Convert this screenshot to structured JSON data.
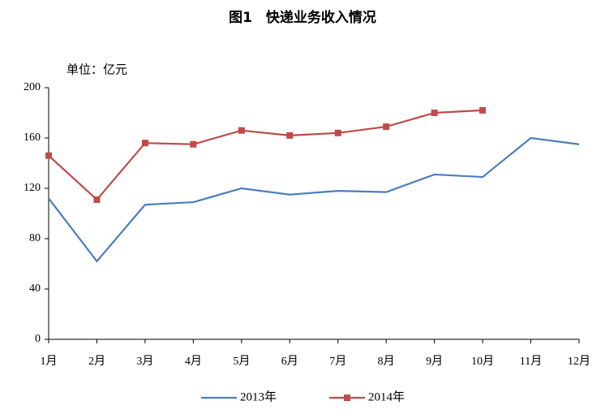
{
  "chart_data": {
    "type": "line",
    "title": "图1　快递业务收入情况",
    "y_unit": "单位：亿元",
    "categories": [
      "1月",
      "2月",
      "3月",
      "4月",
      "5月",
      "6月",
      "7月",
      "8月",
      "9月",
      "10月",
      "11月",
      "12月"
    ],
    "series": [
      {
        "name": "2013年",
        "color": "#4a7ebb",
        "marker": "none",
        "values": [
          112,
          62,
          107,
          109,
          120,
          115,
          118,
          117,
          131,
          129,
          160,
          155
        ]
      },
      {
        "name": "2014年",
        "color": "#be4b48",
        "marker": "square",
        "values": [
          146,
          111,
          156,
          155,
          166,
          162,
          164,
          169,
          180,
          182,
          null,
          null
        ]
      }
    ],
    "ylim": [
      0,
      200
    ],
    "yticks": [
      0,
      40,
      80,
      120,
      160,
      200
    ],
    "grid": false,
    "legend": "bottom"
  }
}
